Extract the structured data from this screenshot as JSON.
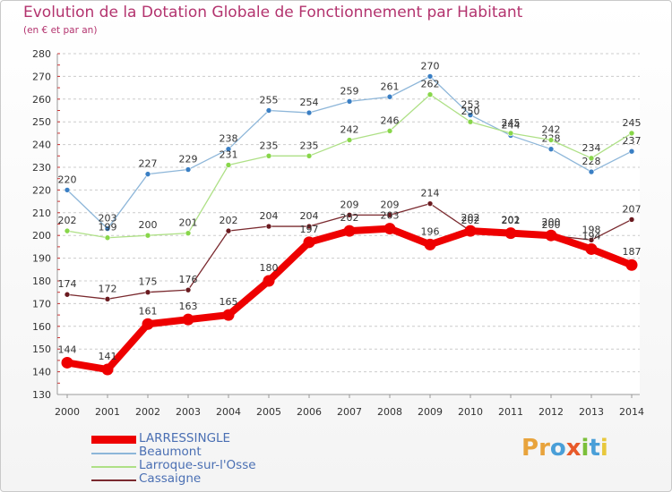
{
  "header": {
    "title": "Evolution de la Dotation Globale de Fonctionnement par Habitant",
    "subtitle": "(en € et par an)"
  },
  "brand": {
    "text": "Proxiti",
    "letters": [
      {
        "ch": "P",
        "color": "#e8a33c"
      },
      {
        "ch": "r",
        "color": "#e8a33c"
      },
      {
        "ch": "o",
        "color": "#4a9fd8"
      },
      {
        "ch": "x",
        "color": "#e85a2a"
      },
      {
        "ch": "i",
        "color": "#7bbf3a"
      },
      {
        "ch": "t",
        "color": "#4a9fd8"
      },
      {
        "ch": "i",
        "color": "#e8c83c"
      }
    ]
  },
  "chart_data": {
    "type": "line",
    "title": "Evolution de la Dotation Globale de Fonctionnement par Habitant",
    "subtitle": "(en € et par an)",
    "xlabel": "",
    "ylabel": "",
    "x": [
      2000,
      2001,
      2002,
      2003,
      2004,
      2005,
      2006,
      2007,
      2008,
      2009,
      2010,
      2011,
      2012,
      2013,
      2014
    ],
    "ylim": [
      130,
      280
    ],
    "yticks": [
      130,
      140,
      150,
      160,
      170,
      180,
      190,
      200,
      210,
      220,
      230,
      240,
      250,
      260,
      270,
      280
    ],
    "grid": "horizontal dashed",
    "legend_position": "bottom-left",
    "series": [
      {
        "name": "Beaumont",
        "color": "#3a7fc4",
        "line_color": "#8db6d9",
        "values": [
          220,
          203,
          227,
          229,
          238,
          255,
          254,
          259,
          261,
          270,
          253,
          244,
          238,
          228,
          237
        ]
      },
      {
        "name": "Larroque-sur-l'Osse",
        "color": "#88d64a",
        "line_color": "#aee086",
        "values": [
          202,
          199,
          200,
          201,
          231,
          235,
          235,
          242,
          246,
          262,
          250,
          245,
          242,
          234,
          245
        ]
      },
      {
        "name": "Cassaigne",
        "color": "#6a1a1f",
        "line_color": "#7a2a2f",
        "values": [
          174,
          172,
          175,
          176,
          202,
          204,
          204,
          209,
          209,
          214,
          202,
          202,
          200,
          198,
          207
        ]
      },
      {
        "name": "LARRESSINGLE",
        "color": "#ee0000",
        "line_color": "#ee0000",
        "values": [
          144,
          141,
          161,
          163,
          165,
          180,
          197,
          202,
          203,
          196,
          202,
          201,
          200,
          194,
          187
        ]
      }
    ]
  }
}
